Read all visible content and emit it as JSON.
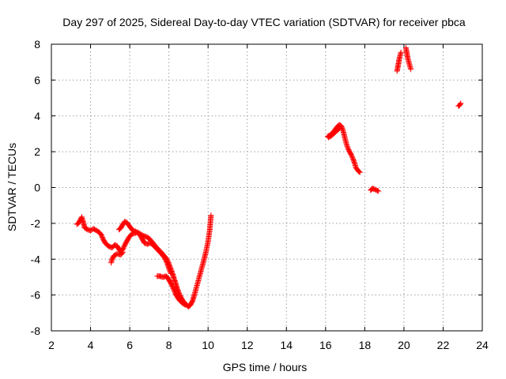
{
  "chart_data": {
    "type": "scatter",
    "title": "Day 297 of 2025, Sidereal Day-to-day VTEC variation (SDTVAR) for receiver pbca",
    "xlabel": "GPS time / hours",
    "ylabel": "SDTVAR / TECUs",
    "xlim": [
      2,
      24
    ],
    "ylim": [
      -8,
      8
    ],
    "xticks": [
      "2",
      "4",
      "6",
      "8",
      "10",
      "12",
      "14",
      "16",
      "18",
      "20",
      "22",
      "24"
    ],
    "yticks": [
      "-8",
      "-6",
      "-4",
      "-2",
      "0",
      "2",
      "4",
      "6",
      "8"
    ],
    "grid": true,
    "marker": "plus",
    "color": "#ff0000",
    "series": [
      {
        "name": "pbca",
        "segments": [
          [
            [
              3.3,
              -2.05
            ],
            [
              3.42,
              -1.95
            ],
            [
              3.5,
              -1.75
            ],
            [
              3.55,
              -1.65
            ],
            [
              3.62,
              -1.9
            ],
            [
              3.7,
              -2.25
            ],
            [
              3.85,
              -2.35
            ],
            [
              4.0,
              -2.4
            ],
            [
              4.15,
              -2.3
            ],
            [
              4.3,
              -2.4
            ],
            [
              4.45,
              -2.5
            ],
            [
              4.55,
              -2.65
            ],
            [
              4.65,
              -2.9
            ],
            [
              4.75,
              -3.1
            ],
            [
              4.85,
              -3.2
            ],
            [
              4.95,
              -3.3
            ],
            [
              5.1,
              -3.35
            ],
            [
              5.25,
              -3.2
            ],
            [
              5.35,
              -3.25
            ],
            [
              5.45,
              -3.45
            ],
            [
              5.55,
              -3.55
            ],
            [
              5.65,
              -3.45
            ],
            [
              5.75,
              -3.2
            ],
            [
              5.85,
              -3.0
            ],
            [
              5.95,
              -2.8
            ],
            [
              6.1,
              -2.6
            ],
            [
              6.25,
              -2.55
            ],
            [
              6.4,
              -2.5
            ],
            [
              6.55,
              -2.6
            ],
            [
              6.7,
              -2.7
            ],
            [
              6.85,
              -2.75
            ],
            [
              7.0,
              -2.85
            ],
            [
              7.15,
              -3.05
            ],
            [
              7.3,
              -3.25
            ],
            [
              7.45,
              -3.45
            ],
            [
              7.6,
              -3.6
            ],
            [
              7.75,
              -3.8
            ],
            [
              7.9,
              -4.0
            ],
            [
              8.0,
              -4.25
            ],
            [
              8.1,
              -4.55
            ],
            [
              8.2,
              -4.85
            ],
            [
              8.3,
              -5.2
            ],
            [
              8.4,
              -5.55
            ],
            [
              8.5,
              -5.85
            ],
            [
              8.6,
              -6.1
            ],
            [
              8.7,
              -6.3
            ],
            [
              8.8,
              -6.45
            ],
            [
              8.9,
              -6.55
            ],
            [
              9.0,
              -6.65
            ],
            [
              9.1,
              -6.55
            ],
            [
              9.2,
              -6.35
            ],
            [
              9.3,
              -6.0
            ],
            [
              9.4,
              -5.6
            ],
            [
              9.5,
              -5.2
            ],
            [
              9.6,
              -4.8
            ],
            [
              9.7,
              -4.4
            ],
            [
              9.8,
              -4.0
            ],
            [
              9.9,
              -3.55
            ],
            [
              10.0,
              -3.0
            ],
            [
              10.08,
              -2.4
            ],
            [
              10.15,
              -1.55
            ]
          ],
          [
            [
              5.05,
              -4.2
            ],
            [
              5.1,
              -4.0
            ],
            [
              5.2,
              -3.8
            ],
            [
              5.35,
              -3.7
            ],
            [
              5.55,
              -3.75
            ],
            [
              5.65,
              -3.6
            ]
          ],
          [
            [
              5.45,
              -2.35
            ],
            [
              5.55,
              -2.25
            ],
            [
              5.65,
              -2.05
            ],
            [
              5.75,
              -1.9
            ],
            [
              5.85,
              -1.95
            ],
            [
              5.95,
              -2.1
            ],
            [
              6.05,
              -2.25
            ],
            [
              6.15,
              -2.4
            ],
            [
              6.3,
              -2.45
            ],
            [
              6.45,
              -2.55
            ],
            [
              6.55,
              -2.7
            ],
            [
              6.65,
              -2.9
            ],
            [
              6.75,
              -3.1
            ],
            [
              6.9,
              -3.15
            ],
            [
              7.05,
              -3.1
            ],
            [
              7.2,
              -3.2
            ],
            [
              7.35,
              -3.4
            ],
            [
              7.5,
              -3.55
            ],
            [
              7.65,
              -3.75
            ],
            [
              7.8,
              -3.95
            ],
            [
              7.9,
              -4.2
            ],
            [
              8.0,
              -4.5
            ],
            [
              8.1,
              -4.8
            ]
          ],
          [
            [
              7.4,
              -4.95
            ],
            [
              7.55,
              -4.95
            ],
            [
              7.7,
              -5.0
            ],
            [
              7.85,
              -4.95
            ],
            [
              7.95,
              -5.05
            ],
            [
              8.05,
              -5.25
            ],
            [
              8.15,
              -5.45
            ],
            [
              8.25,
              -5.7
            ],
            [
              8.35,
              -5.95
            ],
            [
              8.45,
              -6.15
            ],
            [
              8.55,
              -6.3
            ],
            [
              8.65,
              -6.4
            ],
            [
              8.75,
              -6.5
            ],
            [
              8.85,
              -6.55
            ]
          ],
          [
            [
              16.1,
              2.85
            ],
            [
              16.2,
              2.9
            ],
            [
              16.3,
              3.0
            ],
            [
              16.4,
              3.1
            ],
            [
              16.5,
              3.25
            ],
            [
              16.6,
              3.4
            ],
            [
              16.7,
              3.5
            ],
            [
              16.8,
              3.45
            ],
            [
              16.9,
              3.15
            ],
            [
              17.0,
              2.7
            ],
            [
              17.1,
              2.3
            ],
            [
              17.2,
              2.05
            ],
            [
              17.3,
              1.85
            ],
            [
              17.4,
              1.6
            ],
            [
              17.5,
              1.3
            ],
            [
              17.55,
              1.1
            ],
            [
              17.65,
              0.95
            ],
            [
              17.75,
              0.85
            ]
          ],
          [
            [
              16.15,
              2.8
            ],
            [
              16.25,
              2.85
            ],
            [
              16.4,
              3.0
            ],
            [
              16.55,
              3.15
            ],
            [
              16.7,
              3.3
            ]
          ],
          [
            [
              18.3,
              -0.15
            ],
            [
              18.4,
              -0.05
            ],
            [
              18.5,
              -0.1
            ],
            [
              18.6,
              -0.15
            ],
            [
              18.7,
              -0.2
            ]
          ],
          [
            [
              19.65,
              6.5
            ],
            [
              19.7,
              6.8
            ],
            [
              19.75,
              7.1
            ],
            [
              19.8,
              7.35
            ],
            [
              19.85,
              7.55
            ]
          ],
          [
            [
              20.1,
              7.8
            ],
            [
              20.15,
              7.5
            ],
            [
              20.2,
              7.2
            ],
            [
              20.25,
              7.0
            ],
            [
              20.3,
              6.8
            ],
            [
              20.35,
              6.6
            ]
          ],
          [
            [
              22.78,
              4.55
            ],
            [
              22.85,
              4.6
            ],
            [
              22.9,
              4.7
            ]
          ]
        ]
      }
    ]
  }
}
